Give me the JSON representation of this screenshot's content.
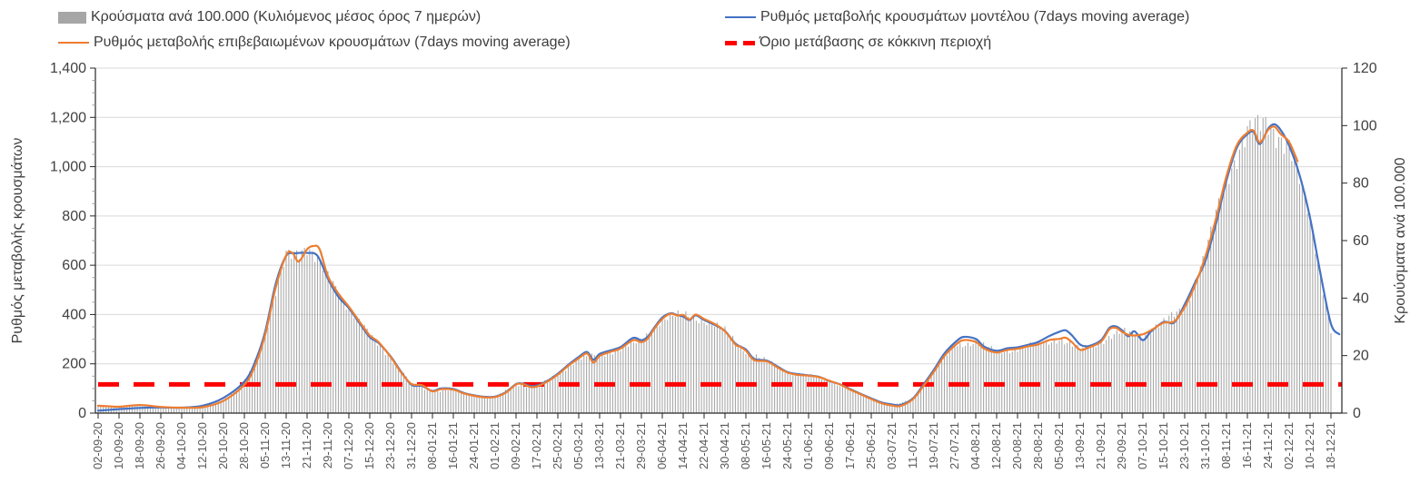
{
  "legend": {
    "bars_label": "Κρούσματα ανά 100.000  (Κυλιόμενος μέσος όρος 7 ημερών)",
    "model_label": "Ρυθμός μεταβολής κρουσμάτων μοντέλου (7days moving average)",
    "confirmed_label": "Ρυθμός μεταβολής επιβεβαιωμένων κρουσμάτων (7days moving average)",
    "threshold_label": "Όριο μετάβασης σε κόκκινη περιοχή"
  },
  "colors": {
    "bar": "#a8a8a8",
    "blue": "#4472C4",
    "orange": "#ED7D31",
    "red": "#FF0000",
    "grid": "#d9d9d9",
    "axis": "#262626"
  },
  "chart_data": {
    "type": "bar+line combo, dual axis",
    "legend_position": "top",
    "grid": "horizontal gridlines every 200 units of left axis",
    "x_unit": "category index; labels every 8 days, bars daily",
    "left_axis": {
      "label": "Ρυθμός μεταβολής κρουσμάτων",
      "min": 0,
      "max": 1400,
      "step": 200,
      "tick_labels": [
        "0",
        "200",
        "400",
        "600",
        "800",
        "1,000",
        "1,200",
        "1,400"
      ]
    },
    "right_axis": {
      "label": "Κρουύσματα ανά 100.000",
      "min": 0,
      "max": 120,
      "step": 20,
      "tick_labels": [
        "0",
        "20",
        "40",
        "60",
        "80",
        "100",
        "120"
      ]
    },
    "categories": [
      "02-09-20",
      "10-09-20",
      "18-09-20",
      "26-09-20",
      "04-10-20",
      "12-10-20",
      "20-10-20",
      "28-10-20",
      "05-11-20",
      "13-11-20",
      "21-11-20",
      "29-11-20",
      "07-12-20",
      "15-12-20",
      "23-12-20",
      "31-12-20",
      "08-01-21",
      "16-01-21",
      "24-01-21",
      "01-02-21",
      "09-02-21",
      "17-02-21",
      "25-02-21",
      "05-03-21",
      "13-03-21",
      "21-03-21",
      "29-03-21",
      "06-04-21",
      "14-04-21",
      "22-04-21",
      "30-04-21",
      "08-05-21",
      "16-05-21",
      "24-05-21",
      "01-06-21",
      "09-06-21",
      "17-06-21",
      "25-06-21",
      "03-07-21",
      "11-07-21",
      "19-07-21",
      "27-07-21",
      "04-08-21",
      "12-08-21",
      "20-08-21",
      "28-08-21",
      "05-09-21",
      "13-09-21",
      "21-09-21",
      "29-09-21",
      "07-10-21",
      "15-10-21",
      "23-10-21",
      "31-10-21",
      "08-11-21",
      "16-11-21",
      "24-11-21",
      "02-12-21",
      "10-12-21",
      "18-12-21"
    ],
    "series": [
      {
        "name": "Κρούσματα ανά 100.000 (Κυλιόμενος μέσος όρος 7 ημερών)",
        "type": "bar",
        "axis": "right",
        "color": "#a8a8a8",
        "weekly_values": [
          2.5,
          2.2,
          2.8,
          2.1,
          1.9,
          2.1,
          4.5,
          10,
          27.5,
          55,
          58,
          47.5,
          37,
          27,
          19.5,
          10,
          7.5,
          8.2,
          6,
          5.6,
          10,
          9.2,
          13.5,
          19,
          20,
          22.5,
          25,
          33,
          34,
          32.5,
          28.5,
          21.5,
          18,
          14,
          13,
          11.2,
          8.2,
          4.9,
          2.6,
          4.9,
          14.4,
          23.5,
          24.8,
          21.2,
          22.4,
          24,
          25.8,
          22,
          25,
          28.3,
          27.4,
          31.5,
          37,
          55,
          82.5,
          97.5,
          101,
          93,
          68,
          29
        ]
      },
      {
        "name": "Ρυθμός μεταβολής επιβεβαιωμένων κρουσμάτων (7days moving average)",
        "type": "line",
        "axis": "left",
        "color": "#ED7D31",
        "points": [
          [
            0,
            30
          ],
          [
            1,
            26
          ],
          [
            2,
            33
          ],
          [
            3,
            25
          ],
          [
            4,
            22
          ],
          [
            5,
            24
          ],
          [
            6,
            50
          ],
          [
            7,
            115
          ],
          [
            7.5,
            190
          ],
          [
            8,
            320
          ],
          [
            8.5,
            510
          ],
          [
            9,
            640
          ],
          [
            9.3,
            650
          ],
          [
            9.6,
            615
          ],
          [
            10,
            665
          ],
          [
            10.3,
            678
          ],
          [
            10.6,
            665
          ],
          [
            11,
            555
          ],
          [
            11.5,
            485
          ],
          [
            12,
            432
          ],
          [
            12.5,
            372
          ],
          [
            13,
            315
          ],
          [
            13.4,
            290
          ],
          [
            14,
            228
          ],
          [
            14.5,
            165
          ],
          [
            15,
            118
          ],
          [
            15.5,
            113
          ],
          [
            16,
            88
          ],
          [
            16.4,
            97
          ],
          [
            17,
            95
          ],
          [
            17.5,
            80
          ],
          [
            18,
            70
          ],
          [
            18.5,
            64
          ],
          [
            19,
            65
          ],
          [
            19.5,
            82
          ],
          [
            20,
            116
          ],
          [
            20.3,
            118
          ],
          [
            20.7,
            106
          ],
          [
            21,
            108
          ],
          [
            21.5,
            128
          ],
          [
            22,
            156
          ],
          [
            22.5,
            192
          ],
          [
            23,
            222
          ],
          [
            23.4,
            242
          ],
          [
            23.7,
            205
          ],
          [
            24,
            232
          ],
          [
            24.5,
            248
          ],
          [
            25,
            262
          ],
          [
            25.6,
            296
          ],
          [
            26,
            288
          ],
          [
            26.3,
            302
          ],
          [
            26.6,
            340
          ],
          [
            27,
            382
          ],
          [
            27.4,
            403
          ],
          [
            27.7,
            396
          ],
          [
            28,
            398
          ],
          [
            28.3,
            380
          ],
          [
            28.6,
            400
          ],
          [
            29,
            382
          ],
          [
            29.5,
            362
          ],
          [
            30,
            332
          ],
          [
            30.5,
            278
          ],
          [
            30.7,
            270
          ],
          [
            31,
            253
          ],
          [
            31.4,
            215
          ],
          [
            32,
            210
          ],
          [
            32.5,
            186
          ],
          [
            33,
            164
          ],
          [
            33.5,
            155
          ],
          [
            34,
            152
          ],
          [
            34.5,
            146
          ],
          [
            35,
            131
          ],
          [
            35.5,
            116
          ],
          [
            36,
            95
          ],
          [
            36.5,
            76
          ],
          [
            37,
            57
          ],
          [
            37.5,
            40
          ],
          [
            38,
            31
          ],
          [
            38.4,
            29
          ],
          [
            39,
            57
          ],
          [
            39.5,
            110
          ],
          [
            40,
            168
          ],
          [
            40.5,
            232
          ],
          [
            41,
            274
          ],
          [
            41.4,
            296
          ],
          [
            42,
            289
          ],
          [
            42.4,
            262
          ],
          [
            43,
            246
          ],
          [
            43.5,
            256
          ],
          [
            44,
            261
          ],
          [
            44.5,
            271
          ],
          [
            45,
            279
          ],
          [
            45.5,
            296
          ],
          [
            46,
            301
          ],
          [
            46.3,
            306
          ],
          [
            46.6,
            288
          ],
          [
            47,
            257
          ],
          [
            47.4,
            266
          ],
          [
            48,
            290
          ],
          [
            48.4,
            340
          ],
          [
            48.7,
            346
          ],
          [
            49,
            330
          ],
          [
            49.4,
            316
          ],
          [
            50,
            320
          ],
          [
            50.5,
            342
          ],
          [
            51,
            367
          ],
          [
            51.5,
            372
          ],
          [
            52,
            430
          ],
          [
            52.5,
            520
          ],
          [
            53,
            638
          ],
          [
            53.5,
            790
          ],
          [
            54,
            962
          ],
          [
            54.5,
            1088
          ],
          [
            55,
            1138
          ],
          [
            55.3,
            1146
          ],
          [
            55.6,
            1098
          ],
          [
            56,
            1150
          ],
          [
            56.3,
            1162
          ],
          [
            56.6,
            1132
          ],
          [
            57,
            1100
          ],
          [
            57.4,
            1022
          ]
        ]
      },
      {
        "name": "Ρυθμός μεταβολής κρουσμάτων μοντέλου (7days moving average)",
        "type": "line",
        "axis": "left",
        "color": "#4472C4",
        "points": [
          [
            0,
            10
          ],
          [
            1,
            16
          ],
          [
            2,
            21
          ],
          [
            3,
            23
          ],
          [
            4,
            22
          ],
          [
            5,
            30
          ],
          [
            6,
            62
          ],
          [
            7,
            128
          ],
          [
            7.5,
            205
          ],
          [
            8,
            332
          ],
          [
            8.5,
            525
          ],
          [
            9,
            638
          ],
          [
            9.4,
            648
          ],
          [
            10,
            650
          ],
          [
            10.5,
            638
          ],
          [
            11,
            545
          ],
          [
            11.5,
            472
          ],
          [
            12,
            426
          ],
          [
            12.5,
            366
          ],
          [
            13,
            308
          ],
          [
            13.4,
            286
          ],
          [
            14,
            230
          ],
          [
            14.5,
            168
          ],
          [
            15,
            115
          ],
          [
            15.5,
            110
          ],
          [
            16,
            90
          ],
          [
            16.4,
            100
          ],
          [
            17,
            98
          ],
          [
            17.5,
            82
          ],
          [
            18,
            72
          ],
          [
            18.5,
            66
          ],
          [
            19,
            67
          ],
          [
            19.5,
            84
          ],
          [
            20,
            118
          ],
          [
            20.3,
            120
          ],
          [
            20.7,
            110
          ],
          [
            21,
            112
          ],
          [
            21.5,
            131
          ],
          [
            22,
            160
          ],
          [
            22.5,
            196
          ],
          [
            23,
            228
          ],
          [
            23.4,
            248
          ],
          [
            23.7,
            216
          ],
          [
            24,
            240
          ],
          [
            24.5,
            254
          ],
          [
            25,
            268
          ],
          [
            25.6,
            305
          ],
          [
            26,
            296
          ],
          [
            26.3,
            310
          ],
          [
            26.6,
            345
          ],
          [
            27,
            388
          ],
          [
            27.4,
            405
          ],
          [
            27.7,
            398
          ],
          [
            28,
            392
          ],
          [
            28.3,
            378
          ],
          [
            28.6,
            397
          ],
          [
            29,
            378
          ],
          [
            29.5,
            358
          ],
          [
            30,
            333
          ],
          [
            30.5,
            282
          ],
          [
            31,
            258
          ],
          [
            31.4,
            220
          ],
          [
            32,
            213
          ],
          [
            32.5,
            190
          ],
          [
            33,
            166
          ],
          [
            33.5,
            158
          ],
          [
            34,
            153
          ],
          [
            34.5,
            147
          ],
          [
            35,
            130
          ],
          [
            35.5,
            117
          ],
          [
            36,
            97
          ],
          [
            36.5,
            78
          ],
          [
            37,
            60
          ],
          [
            37.5,
            43
          ],
          [
            38,
            35
          ],
          [
            38.4,
            33
          ],
          [
            39,
            60
          ],
          [
            39.5,
            116
          ],
          [
            40,
            176
          ],
          [
            40.5,
            242
          ],
          [
            41,
            286
          ],
          [
            41.4,
            309
          ],
          [
            42,
            301
          ],
          [
            42.4,
            270
          ],
          [
            43,
            253
          ],
          [
            43.5,
            263
          ],
          [
            44,
            267
          ],
          [
            44.5,
            277
          ],
          [
            45,
            289
          ],
          [
            45.5,
            312
          ],
          [
            46,
            330
          ],
          [
            46.3,
            336
          ],
          [
            46.6,
            316
          ],
          [
            47,
            278
          ],
          [
            47.4,
            272
          ],
          [
            48,
            296
          ],
          [
            48.4,
            346
          ],
          [
            48.7,
            352
          ],
          [
            49,
            336
          ],
          [
            49.3,
            312
          ],
          [
            49.6,
            332
          ],
          [
            50,
            296
          ],
          [
            50.4,
            332
          ],
          [
            51,
            370
          ],
          [
            51.5,
            368
          ],
          [
            52,
            441
          ],
          [
            52.5,
            530
          ],
          [
            53,
            620
          ],
          [
            53.5,
            770
          ],
          [
            54,
            945
          ],
          [
            54.5,
            1078
          ],
          [
            55,
            1132
          ],
          [
            55.3,
            1140
          ],
          [
            55.6,
            1092
          ],
          [
            56,
            1155
          ],
          [
            56.3,
            1172
          ],
          [
            56.6,
            1148
          ],
          [
            57,
            1085
          ],
          [
            57.5,
            965
          ],
          [
            58,
            792
          ],
          [
            58.5,
            565
          ],
          [
            59,
            362
          ],
          [
            59.4,
            320
          ]
        ]
      },
      {
        "name": "Όριο μετάβασης σε κόκκινη περιοχή",
        "type": "threshold",
        "axis": "right",
        "color": "#FF0000",
        "value": 10,
        "style": "dashed"
      }
    ]
  }
}
